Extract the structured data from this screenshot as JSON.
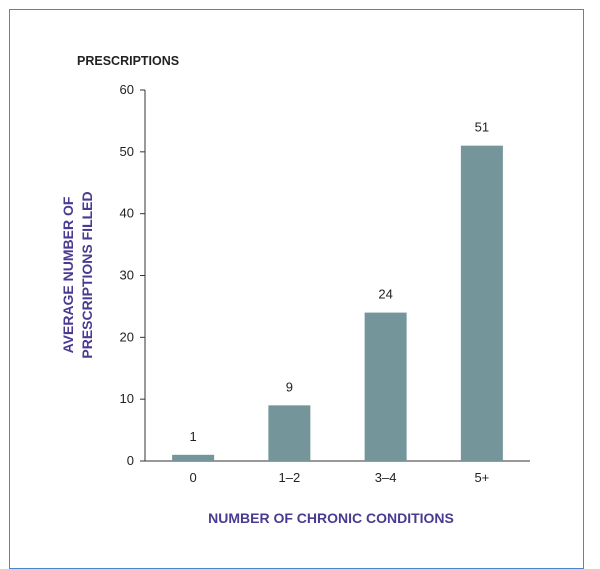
{
  "chart_data": {
    "type": "bar",
    "unit_label": "PRESCRIPTIONS",
    "ylabel_line1": "AVERAGE NUMBER OF",
    "ylabel_line2": "PRESCRIPTIONS FILLED",
    "xlabel": "NUMBER OF CHRONIC CONDITIONS",
    "categories": [
      "0",
      "1–2",
      "3–4",
      "5+"
    ],
    "values": [
      1,
      9,
      24,
      51
    ],
    "value_labels": [
      "1",
      "9",
      "24",
      "51"
    ],
    "ylim": [
      0,
      60
    ],
    "yticks": [
      0,
      10,
      20,
      30,
      40,
      50,
      60
    ],
    "grid": false,
    "bar_color": "#74969a"
  },
  "colors": {
    "frame_border": "#4a86c8",
    "axis_title": "#4b3a92"
  }
}
